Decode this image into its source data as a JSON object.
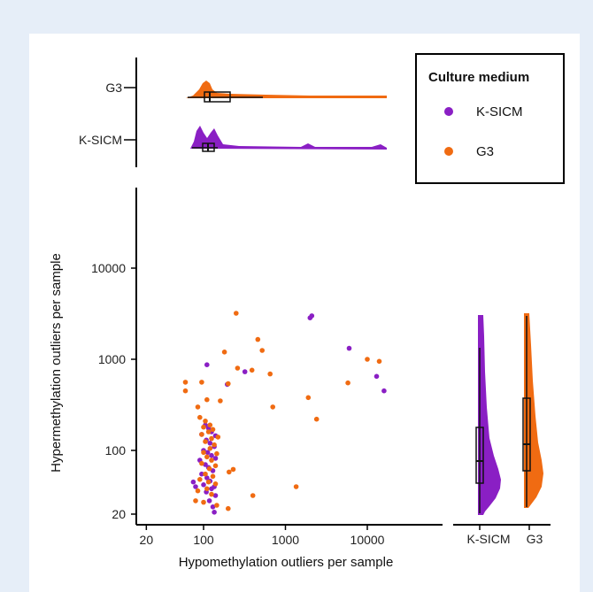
{
  "colors": {
    "K-SICM": "#8a1fc4",
    "G3": "#f06b12",
    "background": "#e6eef8"
  },
  "legend": {
    "title": "Culture medium",
    "items": [
      {
        "label": "K-SICM",
        "color": "#8a1fc4"
      },
      {
        "label": "G3",
        "color": "#f06b12"
      }
    ]
  },
  "chart_data": [
    {
      "type": "scatter",
      "id": "main-scatter",
      "xlabel": "Hypomethylation outliers per sample",
      "ylabel": "Hypermethylation outliers per sample",
      "x_scale": "log",
      "y_scale": "log",
      "xticks": [
        20,
        100,
        1000,
        10000
      ],
      "yticks": [
        20,
        100,
        1000,
        10000
      ],
      "xlim": [
        15,
        30000
      ],
      "ylim": [
        17,
        70000
      ],
      "grid": false,
      "series": [
        {
          "name": "K-SICM",
          "points": [
            [
              110,
              870
            ],
            [
              2100,
              3000
            ],
            [
              2000,
              2850
            ],
            [
              6000,
              1320
            ],
            [
              16000,
              450
            ],
            [
              13000,
              650
            ],
            [
              320,
              730
            ],
            [
              195,
              530
            ],
            [
              105,
              190
            ],
            [
              115,
              175
            ],
            [
              125,
              160
            ],
            [
              95,
              150
            ],
            [
              140,
              145
            ],
            [
              108,
              130
            ],
            [
              120,
              120
            ],
            [
              135,
              110
            ],
            [
              100,
              100
            ],
            [
              112,
              95
            ],
            [
              125,
              88
            ],
            [
              140,
              82
            ],
            [
              90,
              78
            ],
            [
              105,
              70
            ],
            [
              115,
              65
            ],
            [
              130,
              60
            ],
            [
              95,
              55
            ],
            [
              110,
              50
            ],
            [
              120,
              46
            ],
            [
              100,
              42
            ],
            [
              135,
              40
            ],
            [
              125,
              38
            ],
            [
              75,
              45
            ],
            [
              80,
              40
            ],
            [
              108,
              35
            ],
            [
              140,
              32
            ],
            [
              118,
              28
            ],
            [
              130,
              24
            ],
            [
              135,
              21
            ]
          ]
        },
        {
          "name": "G3",
          "points": [
            [
              250,
              3200
            ],
            [
              460,
              1650
            ],
            [
              520,
              1250
            ],
            [
              180,
              1200
            ],
            [
              10000,
              1000
            ],
            [
              14000,
              950
            ],
            [
              260,
              800
            ],
            [
              390,
              760
            ],
            [
              650,
              690
            ],
            [
              60,
              560
            ],
            [
              95,
              560
            ],
            [
              200,
              540
            ],
            [
              5800,
              550
            ],
            [
              60,
              450
            ],
            [
              1900,
              380
            ],
            [
              110,
              360
            ],
            [
              160,
              350
            ],
            [
              2400,
              220
            ],
            [
              700,
              300
            ],
            [
              85,
              300
            ],
            [
              90,
              230
            ],
            [
              105,
              210
            ],
            [
              120,
              190
            ],
            [
              100,
              180
            ],
            [
              130,
              170
            ],
            [
              115,
              160
            ],
            [
              95,
              150
            ],
            [
              150,
              140
            ],
            [
              125,
              135
            ],
            [
              105,
              125
            ],
            [
              135,
              115
            ],
            [
              120,
              105
            ],
            [
              100,
              95
            ],
            [
              145,
              92
            ],
            [
              110,
              85
            ],
            [
              125,
              78
            ],
            [
              95,
              72
            ],
            [
              140,
              68
            ],
            [
              118,
              63
            ],
            [
              205,
              58
            ],
            [
              230,
              62
            ],
            [
              105,
              55
            ],
            [
              130,
              52
            ],
            [
              90,
              48
            ],
            [
              115,
              45
            ],
            [
              140,
              43
            ],
            [
              1350,
              40
            ],
            [
              110,
              38
            ],
            [
              85,
              36
            ],
            [
              125,
              33
            ],
            [
              400,
              32
            ],
            [
              80,
              28
            ],
            [
              100,
              27
            ],
            [
              145,
              25
            ],
            [
              200,
              23
            ]
          ]
        }
      ]
    },
    {
      "type": "area",
      "id": "top-raincloud",
      "categories": [
        "G3",
        "K-SICM"
      ],
      "x_scale": "log",
      "boxes": [
        {
          "name": "G3",
          "q1": 110,
          "median": 125,
          "q3": 190,
          "whisker_low": 60,
          "whisker_high": 520
        },
        {
          "name": "K-SICM",
          "q1": 100,
          "median": 115,
          "q3": 140,
          "whisker_low": 75,
          "whisker_high": 160
        }
      ]
    },
    {
      "type": "area",
      "id": "right-raincloud",
      "categories": [
        "K-SICM",
        "G3"
      ],
      "y_scale": "log",
      "boxes": [
        {
          "name": "K-SICM",
          "q1": 45,
          "median": 75,
          "q3": 180,
          "whisker_low": 20,
          "whisker_high": 1300
        },
        {
          "name": "G3",
          "q1": 60,
          "median": 115,
          "q3": 380,
          "whisker_low": 22,
          "whisker_high": 3200
        }
      ]
    }
  ]
}
